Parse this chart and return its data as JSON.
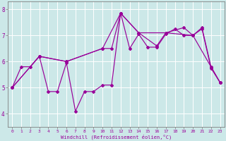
{
  "xlabel": "Windchill (Refroidissement éolien,°C)",
  "bg_color": "#cce8e8",
  "line_color": "#990099",
  "grid_color": "#ffffff",
  "xlim": [
    -0.5,
    23.5
  ],
  "ylim": [
    3.5,
    8.3
  ],
  "yticks": [
    4,
    5,
    6,
    7,
    8
  ],
  "xticks": [
    0,
    1,
    2,
    3,
    4,
    5,
    6,
    7,
    8,
    9,
    10,
    11,
    12,
    13,
    14,
    15,
    16,
    17,
    18,
    19,
    20,
    21,
    22,
    23
  ],
  "line1_x": [
    0,
    1,
    2,
    3,
    4,
    5,
    6,
    7,
    8,
    9,
    10,
    11,
    12,
    13,
    14,
    15,
    16,
    17,
    18,
    19,
    20,
    21,
    22,
    23
  ],
  "line1_y": [
    5.0,
    5.8,
    5.8,
    6.2,
    4.85,
    4.85,
    5.95,
    4.1,
    4.85,
    4.85,
    5.1,
    5.1,
    7.85,
    6.5,
    7.05,
    6.55,
    6.55,
    7.05,
    7.25,
    7.0,
    7.0,
    7.25,
    5.75,
    5.2
  ],
  "line2_x": [
    0,
    3,
    6,
    10,
    11,
    12,
    14,
    16,
    17,
    19,
    20,
    21,
    22,
    23
  ],
  "line2_y": [
    5.0,
    6.2,
    6.0,
    6.5,
    6.5,
    7.85,
    7.1,
    6.6,
    7.1,
    7.3,
    7.0,
    7.3,
    5.8,
    5.2
  ],
  "line3_x": [
    0,
    3,
    6,
    10,
    12,
    14,
    17,
    20,
    22,
    23
  ],
  "line3_y": [
    5.0,
    6.2,
    6.0,
    6.5,
    7.85,
    7.1,
    7.1,
    7.0,
    5.8,
    5.2
  ]
}
